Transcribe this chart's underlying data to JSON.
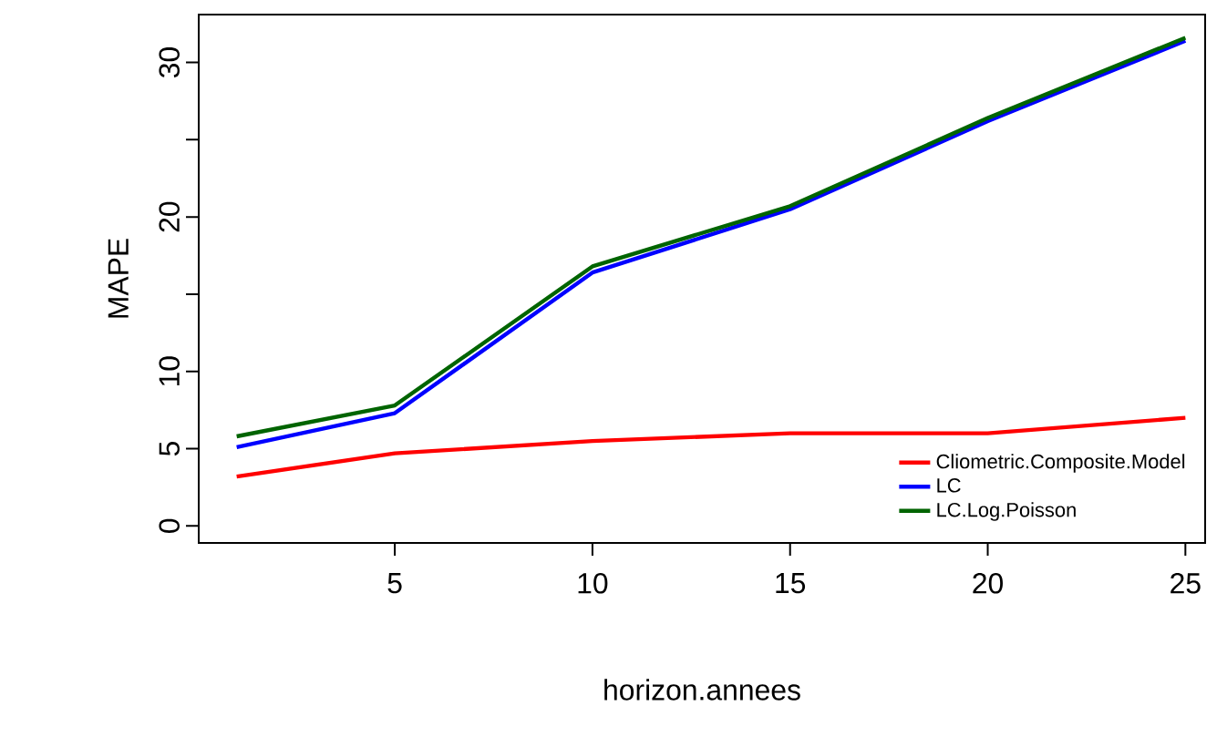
{
  "chart_data": {
    "type": "line",
    "xlabel": "horizon.annees",
    "ylabel": "MAPE",
    "x": [
      1,
      5,
      10,
      15,
      20,
      25
    ],
    "xlim": [
      0.04,
      25.5
    ],
    "ylim": [
      -1.1,
      33.1
    ],
    "xticks": [
      5,
      10,
      15,
      20,
      25
    ],
    "yticks": [
      0,
      5,
      10,
      {
        "value": 15,
        "label": null
      },
      20,
      {
        "value": 25,
        "label": null
      },
      30
    ],
    "legend": "bottom right",
    "grid": false,
    "line_style": "solid",
    "marker": "none",
    "series": [
      {
        "name": "Cliometric.Composite.Model",
        "color": "#ff0000",
        "values": [
          3.2,
          4.7,
          5.5,
          6.0,
          6.0,
          7.0
        ]
      },
      {
        "name": "LC",
        "color": "#0000ff",
        "values": [
          5.1,
          7.3,
          16.4,
          20.5,
          26.2,
          31.4
        ]
      },
      {
        "name": "LC.Log.Poisson",
        "color": "#006400",
        "values": [
          5.8,
          7.8,
          16.8,
          20.7,
          26.4,
          31.6
        ]
      }
    ]
  }
}
